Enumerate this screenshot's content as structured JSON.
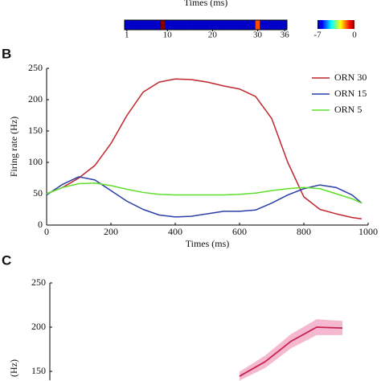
{
  "chart_data": [
    {
      "type": "heatmap",
      "title": "Times (ms)",
      "values": [
        -6.5,
        -6.5,
        -6.5,
        -6.5,
        -6.5,
        -6.5,
        -6.5,
        -6.5,
        0,
        -6.5,
        -6.5,
        -6.5,
        -6.5,
        -6.5,
        -6.5,
        -6.5,
        -6.5,
        -6.5,
        -6.5,
        -6.5,
        -6.5,
        -6.5,
        -6.5,
        -6.5,
        -6.5,
        -6.5,
        -6.5,
        -6.5,
        -6.5,
        -1.4,
        -6.5,
        -6.5,
        -6.5,
        -6.5,
        -6.5,
        -6.5
      ],
      "xticks": [
        1,
        10,
        20,
        30,
        36
      ],
      "clim": [
        -7,
        0
      ],
      "cticks": [
        -7,
        0
      ],
      "colormap": "jet"
    },
    {
      "type": "line",
      "panel_label": "B",
      "xlabel": "Times (ms)",
      "ylabel": "Firing rate (Hz)",
      "x": [
        0,
        50,
        100,
        150,
        200,
        250,
        300,
        350,
        400,
        450,
        500,
        550,
        600,
        650,
        700,
        750,
        800,
        850,
        900,
        950,
        980
      ],
      "series": [
        {
          "name": "ORN 30",
          "color": "#c0272d",
          "values": [
            50,
            60,
            75,
            95,
            130,
            175,
            212,
            228,
            233,
            232,
            228,
            222,
            217,
            205,
            170,
            100,
            45,
            25,
            18,
            12,
            10
          ]
        },
        {
          "name": "ORN 15",
          "color": "#2b3ea8",
          "values": [
            48,
            65,
            77,
            72,
            55,
            38,
            25,
            16,
            13,
            14,
            18,
            22,
            22,
            24,
            35,
            48,
            58,
            64,
            60,
            48,
            35
          ]
        },
        {
          "name": "ORN 5",
          "color": "#5ee02a",
          "values": [
            50,
            60,
            66,
            67,
            63,
            57,
            52,
            49,
            48,
            48,
            48,
            48,
            49,
            51,
            55,
            58,
            60,
            58,
            50,
            42,
            35
          ]
        }
      ],
      "xlim": [
        0,
        1000
      ],
      "ylim": [
        0,
        250
      ],
      "xticks": [
        0,
        200,
        400,
        600,
        800,
        1000
      ],
      "yticks": [
        0,
        50,
        100,
        150,
        200,
        250
      ],
      "legend": "upper right"
    },
    {
      "type": "band-line",
      "panel_label": "C",
      "ylabel": "(Hz)",
      "categories": [
        null,
        null,
        null,
        null,
        null
      ],
      "values": [
        144.5,
        161,
        184,
        200,
        199
      ],
      "errors": [
        5,
        7,
        8,
        9,
        8
      ],
      "color": "#c8224e",
      "band_color": "#f2a6c6",
      "ylim": [
        140,
        250
      ],
      "yticks": [
        150,
        200,
        250
      ]
    }
  ]
}
